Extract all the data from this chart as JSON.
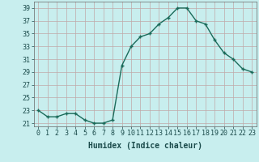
{
  "x": [
    0,
    1,
    2,
    3,
    4,
    5,
    6,
    7,
    8,
    9,
    10,
    11,
    12,
    13,
    14,
    15,
    16,
    17,
    18,
    19,
    20,
    21,
    22,
    23
  ],
  "y": [
    23,
    22,
    22,
    22.5,
    22.5,
    21.5,
    21,
    21,
    21.5,
    30,
    33,
    34.5,
    35,
    36.5,
    37.5,
    39,
    39,
    37,
    36.5,
    34,
    32,
    31,
    29.5,
    29
  ],
  "line_color": "#1a6b5a",
  "marker": "+",
  "marker_size": 3.5,
  "bg_color": "#c8eeee",
  "grid_color": "#c0a8a8",
  "xlabel": "Humidex (Indice chaleur)",
  "xlabel_fontsize": 7,
  "ylabel_ticks": [
    21,
    23,
    25,
    27,
    29,
    31,
    33,
    35,
    37,
    39
  ],
  "xtick_labels": [
    "0",
    "1",
    "2",
    "3",
    "4",
    "5",
    "6",
    "7",
    "8",
    "9",
    "10",
    "11",
    "12",
    "13",
    "14",
    "15",
    "16",
    "17",
    "18",
    "19",
    "20",
    "21",
    "22",
    "23"
  ],
  "xlim": [
    -0.5,
    23.5
  ],
  "ylim": [
    20.5,
    40
  ],
  "tick_fontsize": 6,
  "linewidth": 1.0
}
